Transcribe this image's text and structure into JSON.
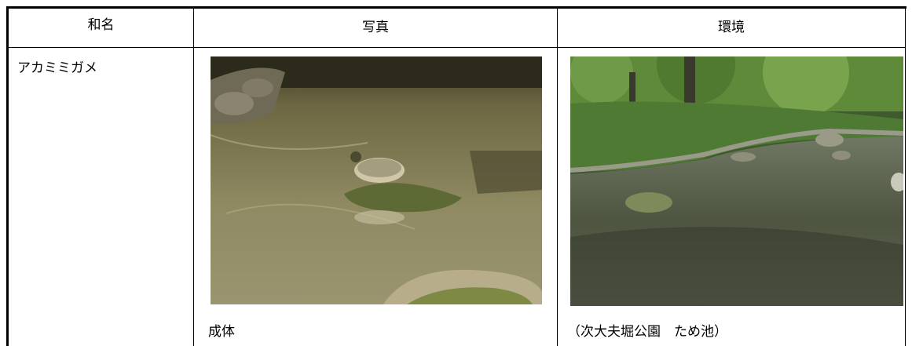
{
  "table": {
    "headers": [
      "和名",
      "写真",
      "環境"
    ],
    "rows": [
      [
        "アカミミガメ",
        "成体",
        "（次大夫堀公園　ため池）"
      ]
    ]
  }
}
